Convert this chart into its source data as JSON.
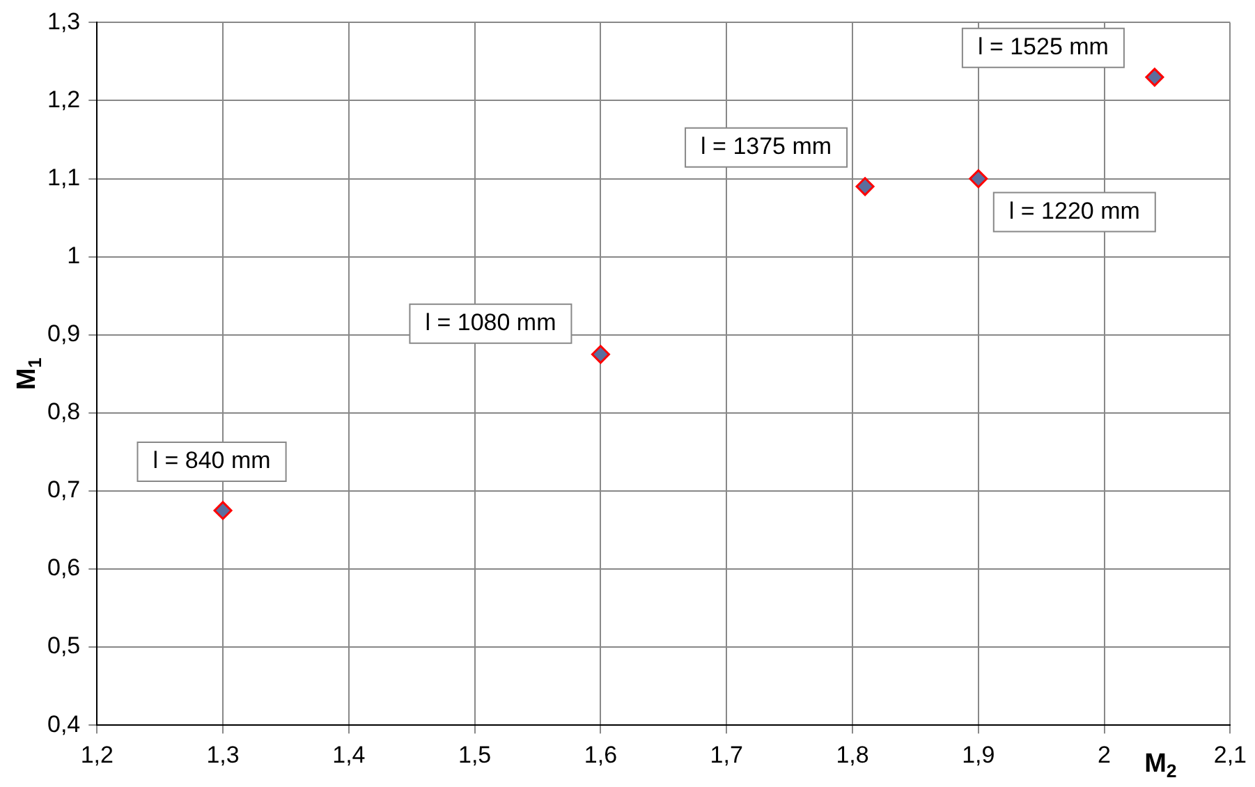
{
  "chart_data": {
    "type": "scatter",
    "xlabel": "M$_{2}$",
    "ylabel": "M$_{1}$",
    "x": [
      1.3,
      1.6,
      1.81,
      1.9,
      2.04
    ],
    "series": [
      {
        "color": "#5b6e9e",
        "values": [
          0.675,
          0.875,
          1.09,
          1.1,
          1.23
        ]
      }
    ],
    "xlim": [
      1.2,
      2.1
    ],
    "xticks": [
      {
        "value": 1.2,
        "label": "1,2"
      },
      {
        "value": 1.3,
        "label": "1,3"
      },
      {
        "value": 1.4,
        "label": "1,4"
      },
      {
        "value": 1.5,
        "label": "1,5"
      },
      {
        "value": 1.6,
        "label": "1,6"
      },
      {
        "value": 1.7,
        "label": "1,7"
      },
      {
        "value": 1.8,
        "label": "1,8"
      },
      {
        "value": 1.9,
        "label": "1,9"
      },
      2,
      {
        "value": 2.1,
        "label": "2,1"
      }
    ],
    "ylim": [
      0.4,
      1.3
    ],
    "yticks": [
      {
        "value": 0.4,
        "label": "0,4"
      },
      {
        "value": 0.5,
        "label": "0,5"
      },
      {
        "value": 0.6,
        "label": "0,6"
      },
      {
        "value": 0.7,
        "label": "0,7"
      },
      {
        "value": 0.8,
        "label": "0,8"
      },
      {
        "value": 0.9,
        "label": "0,9"
      },
      1,
      {
        "value": 1.1,
        "label": "1,1"
      },
      {
        "value": 1.2,
        "label": "1,2"
      },
      {
        "value": 1.3,
        "label": "1,3"
      }
    ],
    "annotations": [
      {
        "text": "l = 840 mm",
        "x": 1.3,
        "y": 0.675
      },
      {
        "text": "l = 1080 mm",
        "x": 1.6,
        "y": 0.875
      },
      {
        "text": "l = 1375 mm",
        "x": 1.81,
        "y": 1.09
      },
      {
        "text": "l = 1220 mm",
        "x": 1.9,
        "y": 1.1
      },
      {
        "text": "l = 1525 mm",
        "x": 2.04,
        "y": 1.23
      }
    ],
    "grid": true,
    "legend": false,
    "marker": "diamond"
  }
}
